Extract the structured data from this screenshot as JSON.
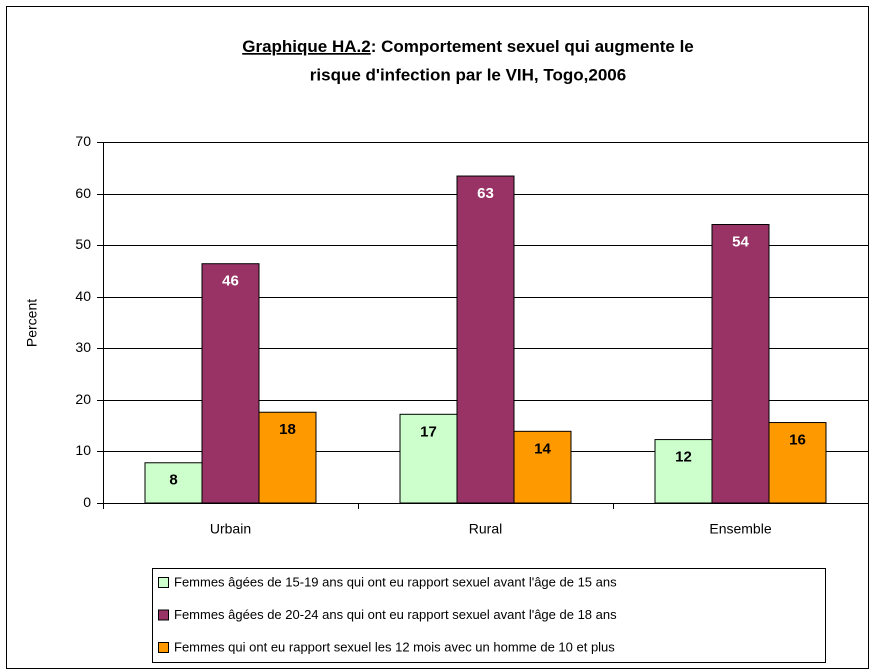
{
  "chart_data": {
    "type": "bar",
    "title_prefix": "Graphique HA.2",
    "title": [
      ": Comportement sexuel qui augmente le",
      "risque d'infection par le VIH, Togo,2006"
    ],
    "ylabel": "Percent",
    "categories": [
      "Urbain",
      "Rural",
      "Ensemble"
    ],
    "series": [
      {
        "name": "Femmes âgées de 15-19 ans qui ont eu rapport sexuel avant l'âge de 15 ans",
        "color": "#ccffcc",
        "values": [
          7.8,
          17.2,
          12.3
        ],
        "value_labels": [
          "8",
          "17",
          "12"
        ]
      },
      {
        "name": "Femmes âgées de 20-24 ans qui ont eu rapport sexuel avant l'âge de 18 ans",
        "color": "#993366",
        "values": [
          46.4,
          63.4,
          54.0
        ],
        "value_labels": [
          "46",
          "63",
          "54"
        ]
      },
      {
        "name": "Femmes qui ont eu rapport sexuel les 12 mois avec un homme de 10 et plus",
        "color": "#ff9900",
        "values": [
          17.6,
          13.9,
          15.6
        ],
        "value_labels": [
          "18",
          "14",
          "16"
        ]
      }
    ],
    "ylim": [
      0,
      70
    ],
    "yticks": [
      0,
      10,
      20,
      30,
      40,
      50,
      60,
      70
    ],
    "grid": true
  }
}
